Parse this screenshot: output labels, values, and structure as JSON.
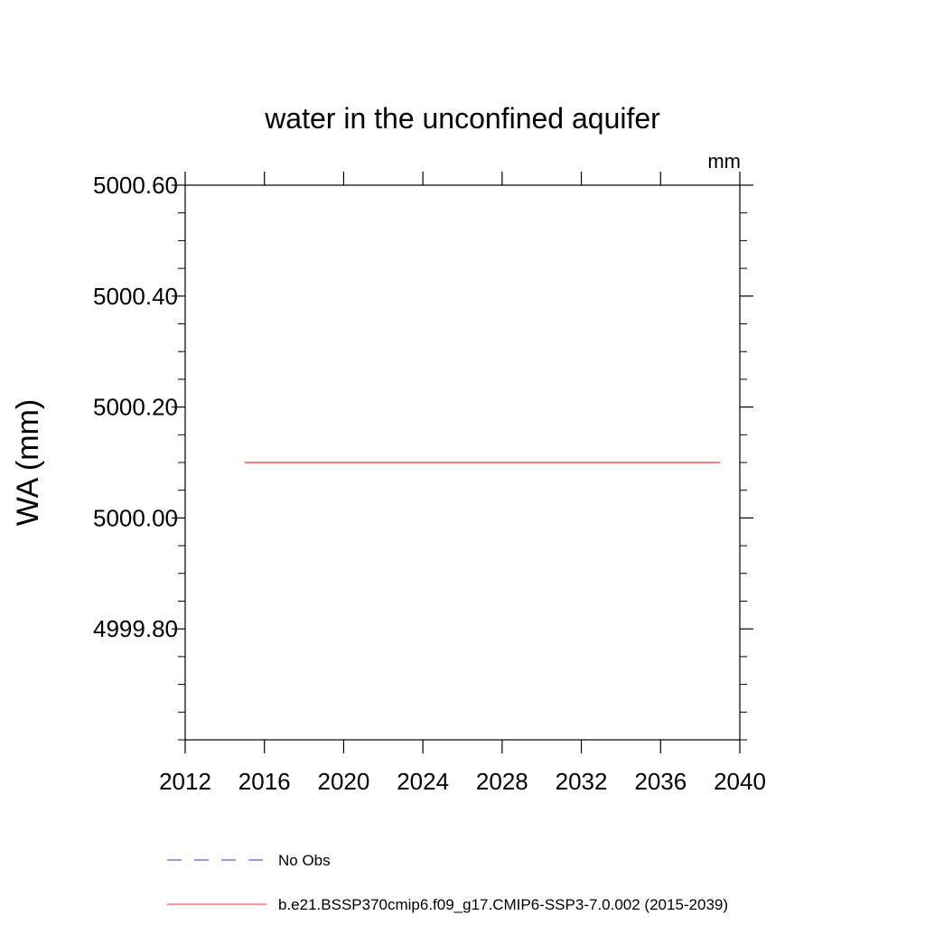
{
  "chart_data": {
    "type": "line",
    "title": "water in the unconfined aquifer",
    "units_label": "mm",
    "xlabel": "",
    "ylabel": "WA  (mm)",
    "xlim": [
      2012,
      2040
    ],
    "ylim": [
      4999.6,
      5000.6
    ],
    "x_ticks": [
      2012,
      2016,
      2020,
      2024,
      2028,
      2032,
      2036,
      2040
    ],
    "x_tick_labels": [
      "2012",
      "2016",
      "2020",
      "2024",
      "2028",
      "2032",
      "2036",
      "2040"
    ],
    "y_ticks": [
      4999.8,
      5000.0,
      5000.2,
      5000.4,
      5000.6
    ],
    "y_tick_labels": [
      "4999.80",
      "5000.00",
      "5000.20",
      "5000.40",
      "5000.60"
    ],
    "y_minor_step": 0.05,
    "x_minor": false,
    "grid": false,
    "legend_position": "bottom",
    "series": [
      {
        "name": "No Obs",
        "color": "#3333cc",
        "dash": true,
        "x": [],
        "y": []
      },
      {
        "name": "b.e21.BSSP370cmip6.f09_g17.CMIP6-SSP3-7.0.002 (2015-2039)",
        "color": "#ee3333",
        "dash": false,
        "x": [
          2015,
          2039
        ],
        "y": [
          5000.1,
          5000.1
        ]
      }
    ]
  }
}
